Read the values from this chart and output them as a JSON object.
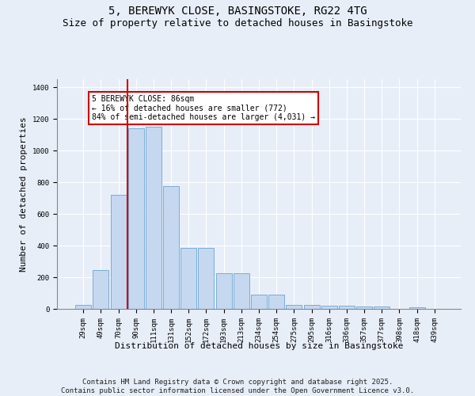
{
  "title": "5, BEREWYK CLOSE, BASINGSTOKE, RG22 4TG",
  "subtitle": "Size of property relative to detached houses in Basingstoke",
  "xlabel": "Distribution of detached houses by size in Basingstoke",
  "ylabel": "Number of detached properties",
  "categories": [
    "29sqm",
    "49sqm",
    "70sqm",
    "90sqm",
    "111sqm",
    "131sqm",
    "152sqm",
    "172sqm",
    "193sqm",
    "213sqm",
    "234sqm",
    "254sqm",
    "275sqm",
    "295sqm",
    "316sqm",
    "336sqm",
    "357sqm",
    "377sqm",
    "398sqm",
    "418sqm",
    "439sqm"
  ],
  "values": [
    25,
    245,
    720,
    1140,
    1150,
    775,
    385,
    385,
    225,
    225,
    90,
    90,
    25,
    25,
    20,
    20,
    15,
    15,
    0,
    10,
    0
  ],
  "bar_color": "#c5d8f0",
  "bar_edge_color": "#7aadd4",
  "bg_color": "#e8eef8",
  "grid_color": "#ffffff",
  "vline_x_index": 3,
  "vline_color": "#cc0000",
  "annotation_text": "5 BEREWYK CLOSE: 86sqm\n← 16% of detached houses are smaller (772)\n84% of semi-detached houses are larger (4,031) →",
  "annotation_box_color": "#ffffff",
  "annotation_box_edge": "#cc0000",
  "footer_text": "Contains HM Land Registry data © Crown copyright and database right 2025.\nContains public sector information licensed under the Open Government Licence v3.0.",
  "ylim": [
    0,
    1450
  ],
  "title_fontsize": 10,
  "subtitle_fontsize": 9,
  "xlabel_fontsize": 8,
  "ylabel_fontsize": 8,
  "tick_fontsize": 6.5,
  "footer_fontsize": 6.5,
  "annot_fontsize": 7
}
